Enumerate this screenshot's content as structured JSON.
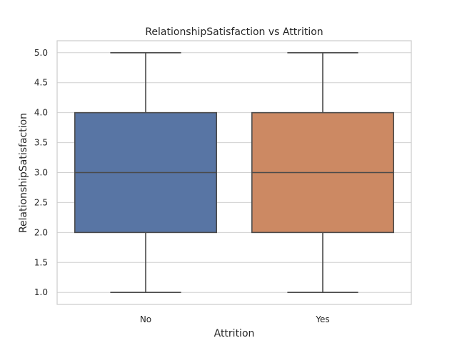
{
  "chart_data": {
    "type": "box",
    "title": "RelationshipSatisfaction vs Attrition",
    "xlabel": "Attrition",
    "ylabel": "RelationshipSatisfaction",
    "ylim": [
      0.8,
      5.2
    ],
    "yticks": [
      "1.0",
      "1.5",
      "2.0",
      "2.5",
      "3.0",
      "3.5",
      "4.0",
      "4.5",
      "5.0"
    ],
    "grid": true,
    "categories": [
      "No",
      "Yes"
    ],
    "boxes": [
      {
        "category": "No",
        "min": 1.0,
        "q1": 2.0,
        "median": 3.0,
        "q3": 4.0,
        "max": 5.0,
        "color": "#5875a4"
      },
      {
        "category": "Yes",
        "min": 1.0,
        "q1": 2.0,
        "median": 3.0,
        "q3": 4.0,
        "max": 5.0,
        "color": "#cc8963"
      }
    ]
  }
}
